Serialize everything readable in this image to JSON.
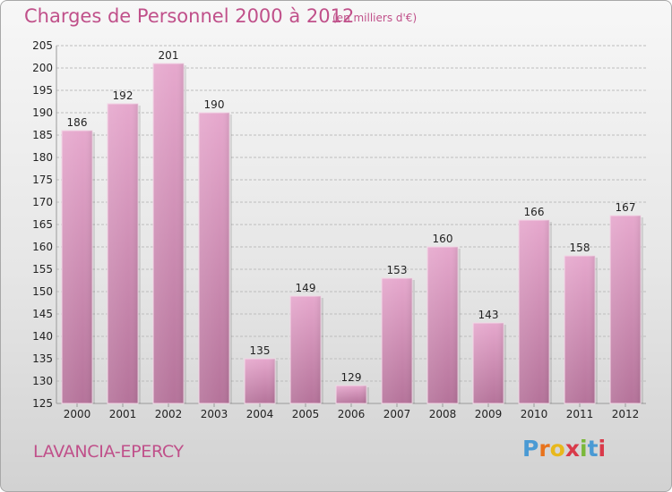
{
  "header": {
    "title": "Charges de Personnel 2000 à 2012",
    "unit": "(en milliers d'€)"
  },
  "footer": {
    "commune": "LAVANCIA-EPERCY",
    "logo_letters": [
      "P",
      "r",
      "o",
      "x",
      "i",
      "t",
      "i"
    ],
    "logo_colors": [
      "#4a9ad4",
      "#e8731c",
      "#e8b81c",
      "#d93a4a",
      "#7ab83a",
      "#4a9ad4",
      "#d93a4a"
    ]
  },
  "colors": {
    "title": "#c0508a",
    "bar_top": "#e6a8cd",
    "bar_bottom": "#b5739a",
    "grid": "#bdbdbd",
    "axis_text": "#222222"
  },
  "chart_data": {
    "type": "bar",
    "title": "Charges de Personnel 2000 à 2012",
    "xlabel": "",
    "ylabel": "",
    "categories": [
      "2000",
      "2001",
      "2002",
      "2003",
      "2004",
      "2005",
      "2006",
      "2007",
      "2008",
      "2009",
      "2010",
      "2011",
      "2012"
    ],
    "values": [
      186,
      192,
      201,
      190,
      135,
      149,
      129,
      153,
      160,
      143,
      166,
      158,
      167
    ],
    "value_labels": [
      "186",
      "192",
      "201",
      "190",
      "135",
      "149",
      "129",
      "153",
      "160",
      "143",
      "166",
      "158",
      "167"
    ],
    "ylim": [
      125,
      205
    ],
    "yticks": [
      "125",
      "130",
      "135",
      "140",
      "145",
      "150",
      "155",
      "160",
      "165",
      "170",
      "175",
      "180",
      "185",
      "190",
      "195",
      "200",
      "205"
    ],
    "grid": true
  }
}
